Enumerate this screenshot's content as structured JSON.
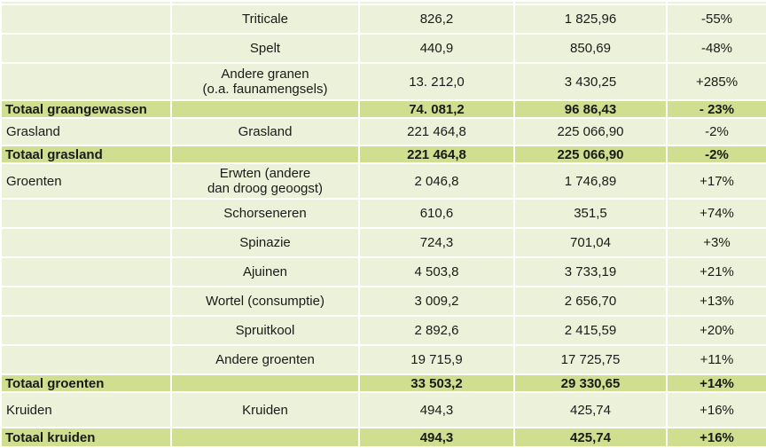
{
  "rows": [
    {
      "kind": "data",
      "category": "",
      "crop": "",
      "v2022": "",
      "v2023": "",
      "change": ""
    },
    {
      "kind": "data",
      "category": "",
      "crop": "Triticale",
      "v2022": "826,2",
      "v2023": "1 825,96",
      "change": "-55%"
    },
    {
      "kind": "data",
      "category": "",
      "crop": "Spelt",
      "v2022": "440,9",
      "v2023": "850,69",
      "change": "-48%"
    },
    {
      "kind": "data",
      "category": "",
      "crop": "Andere granen\n(o.a. faunamengsels)",
      "v2022": "13. 212,0",
      "v2023": "3 430,25",
      "change": "+285%"
    },
    {
      "kind": "total",
      "category": "Totaal graangewassen",
      "crop": "",
      "v2022": "74. 081,2",
      "v2023": "96 86,43",
      "change": "- 23%"
    },
    {
      "kind": "data",
      "category": "Grasland",
      "crop": "Grasland",
      "v2022": "221 464,8",
      "v2023": "225 066,90",
      "change": "-2%"
    },
    {
      "kind": "total",
      "category": "Totaal grasland",
      "crop": "",
      "v2022": "221 464,8",
      "v2023": "225 066,90",
      "change": "-2%"
    },
    {
      "kind": "data",
      "category": "Groenten",
      "crop": "Erwten (andere\ndan droog geoogst)",
      "v2022": "2 046,8",
      "v2023": "1 746,89",
      "change": "+17%"
    },
    {
      "kind": "data",
      "category": "",
      "crop": "Schorseneren",
      "v2022": "610,6",
      "v2023": "351,5",
      "change": "+74%"
    },
    {
      "kind": "data",
      "category": "",
      "crop": "Spinazie",
      "v2022": "724,3",
      "v2023": "701,04",
      "change": "+3%"
    },
    {
      "kind": "data",
      "category": "",
      "crop": "Ajuinen",
      "v2022": "4 503,8",
      "v2023": "3 733,19",
      "change": "+21%"
    },
    {
      "kind": "data",
      "category": "",
      "crop": "Wortel (consumptie)",
      "v2022": "3 009,2",
      "v2023": "2 656,70",
      "change": "+13%"
    },
    {
      "kind": "data",
      "category": "",
      "crop": "Spruitkool",
      "v2022": "2 892,6",
      "v2023": "2 415,59",
      "change": "+20%"
    },
    {
      "kind": "data",
      "category": "",
      "crop": "Andere groenten",
      "v2022": "19 715,9",
      "v2023": "17 725,75",
      "change": "+11%"
    },
    {
      "kind": "total",
      "category": "Totaal groenten",
      "crop": "",
      "v2022": "33 503,2",
      "v2023": "29 330,65",
      "change": "+14%"
    },
    {
      "kind": "data",
      "category": "Kruiden",
      "crop": "Kruiden",
      "v2022": "494,3",
      "v2023": "425,74",
      "change": "+16%"
    },
    {
      "kind": "total",
      "category": "Totaal kruiden",
      "crop": "",
      "v2022": "494,3",
      "v2023": "425,74",
      "change": "+16%"
    }
  ],
  "colors": {
    "row_background": "#ecf2d9",
    "total_background": "#cfdf8f",
    "grid_lines": "#ffffff"
  }
}
